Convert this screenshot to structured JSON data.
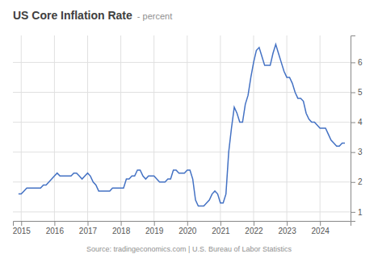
{
  "chart_data": {
    "type": "line",
    "title": "US Core Inflation Rate",
    "subtitle": "- percent",
    "annotations": [
      "Source: tradingeconomics.com | U.S. Bureau of Labor Statistics"
    ],
    "color": "#4472c4",
    "grid": true,
    "xlim": [
      2014.75,
      2024.92
    ],
    "xticks": [
      2015,
      2016,
      2017,
      2018,
      2019,
      2020,
      2021,
      2022,
      2023,
      2024
    ],
    "ylim": [
      0.7,
      6.9
    ],
    "yticks": [
      1,
      2,
      3,
      4,
      5,
      6
    ],
    "x": [
      2014.917,
      2015.0,
      2015.083,
      2015.167,
      2015.25,
      2015.333,
      2015.417,
      2015.5,
      2015.583,
      2015.667,
      2015.75,
      2015.833,
      2015.917,
      2016.0,
      2016.083,
      2016.167,
      2016.25,
      2016.333,
      2016.417,
      2016.5,
      2016.583,
      2016.667,
      2016.75,
      2016.833,
      2016.917,
      2017.0,
      2017.083,
      2017.167,
      2017.25,
      2017.333,
      2017.417,
      2017.5,
      2017.583,
      2017.667,
      2017.75,
      2017.833,
      2017.917,
      2018.0,
      2018.083,
      2018.167,
      2018.25,
      2018.333,
      2018.417,
      2018.5,
      2018.583,
      2018.667,
      2018.75,
      2018.833,
      2018.917,
      2019.0,
      2019.083,
      2019.167,
      2019.25,
      2019.333,
      2019.417,
      2019.5,
      2019.583,
      2019.667,
      2019.75,
      2019.833,
      2019.917,
      2020.0,
      2020.083,
      2020.167,
      2020.25,
      2020.333,
      2020.417,
      2020.5,
      2020.583,
      2020.667,
      2020.75,
      2020.833,
      2020.917,
      2021.0,
      2021.083,
      2021.167,
      2021.25,
      2021.333,
      2021.417,
      2021.5,
      2021.583,
      2021.667,
      2021.75,
      2021.833,
      2021.917,
      2022.0,
      2022.083,
      2022.167,
      2022.25,
      2022.333,
      2022.417,
      2022.5,
      2022.583,
      2022.667,
      2022.75,
      2022.833,
      2022.917,
      2023.0,
      2023.083,
      2023.167,
      2023.25,
      2023.333,
      2023.417,
      2023.5,
      2023.583,
      2023.667,
      2023.75,
      2023.833,
      2023.917,
      2024.0,
      2024.083,
      2024.167,
      2024.25,
      2024.333,
      2024.417,
      2024.5,
      2024.583,
      2024.667,
      2024.75
    ],
    "values": [
      1.6,
      1.6,
      1.7,
      1.8,
      1.8,
      1.8,
      1.8,
      1.8,
      1.8,
      1.9,
      1.9,
      2.0,
      2.1,
      2.2,
      2.3,
      2.2,
      2.2,
      2.2,
      2.2,
      2.2,
      2.3,
      2.3,
      2.2,
      2.1,
      2.2,
      2.3,
      2.2,
      2.0,
      1.9,
      1.7,
      1.7,
      1.7,
      1.7,
      1.7,
      1.8,
      1.8,
      1.8,
      1.8,
      1.8,
      2.1,
      2.1,
      2.2,
      2.2,
      2.4,
      2.4,
      2.2,
      2.1,
      2.2,
      2.2,
      2.2,
      2.1,
      2.0,
      2.0,
      2.0,
      2.1,
      2.1,
      2.4,
      2.4,
      2.3,
      2.3,
      2.3,
      2.4,
      2.4,
      2.1,
      1.4,
      1.2,
      1.2,
      1.2,
      1.3,
      1.4,
      1.6,
      1.7,
      1.6,
      1.3,
      1.3,
      1.6,
      3.0,
      3.8,
      4.5,
      4.3,
      4.0,
      4.0,
      4.6,
      4.9,
      5.5,
      6.0,
      6.4,
      6.5,
      6.2,
      5.9,
      5.9,
      5.9,
      6.3,
      6.6,
      6.3,
      6.0,
      5.7,
      5.5,
      5.5,
      5.3,
      5.0,
      4.8,
      4.8,
      4.7,
      4.3,
      4.1,
      4.0,
      4.0,
      3.9,
      3.8,
      3.8,
      3.8,
      3.6,
      3.4,
      3.3,
      3.2,
      3.2,
      3.3,
      3.3
    ]
  }
}
